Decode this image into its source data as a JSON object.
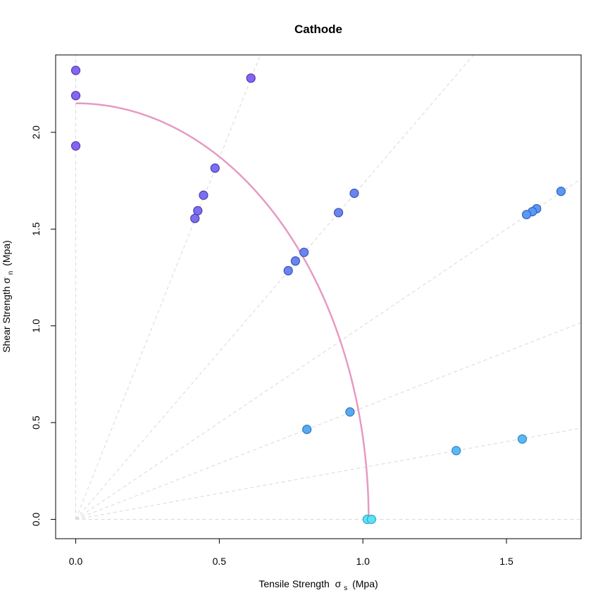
{
  "chart_data": {
    "type": "scatter",
    "title": "Cathode",
    "xlabel": "Tensile Strength",
    "xlabel_symbol": "σ",
    "xlabel_sub": "s",
    "xlabel_unit": "(Mpa)",
    "ylabel": "Shear Strength",
    "ylabel_symbol": "σ",
    "ylabel_sub": "n",
    "ylabel_unit": "(Mpa)",
    "xlim": [
      -0.07,
      1.76
    ],
    "ylim": [
      -0.1,
      2.4
    ],
    "x_ticks": [
      0.0,
      0.5,
      1.0,
      1.5
    ],
    "x_tick_labels": [
      "0.0",
      "0.5",
      "1.0",
      "1.5"
    ],
    "y_ticks": [
      0.0,
      0.5,
      1.0,
      1.5,
      2.0
    ],
    "y_tick_labels": [
      "0.0",
      "0.5",
      "1.0",
      "1.5",
      "2.0"
    ],
    "grid": false,
    "ray_angles_deg": [
      0,
      15,
      30,
      45,
      60,
      75,
      90
    ],
    "envelope": {
      "type": "elliptical",
      "a": 1.02,
      "b": 2.15,
      "color": "#e69ac4"
    },
    "points": [
      {
        "x": 0.0,
        "y": 2.32,
        "color": "#8466f0",
        "edge": "#5236b8"
      },
      {
        "x": 0.0,
        "y": 2.19,
        "color": "#8466f0",
        "edge": "#5236b8"
      },
      {
        "x": 0.0,
        "y": 1.93,
        "color": "#8466f0",
        "edge": "#5236b8"
      },
      {
        "x": 0.61,
        "y": 2.28,
        "color": "#8466f0",
        "edge": "#5236b8"
      },
      {
        "x": 0.485,
        "y": 1.815,
        "color": "#7b6ef0",
        "edge": "#4a3cb4"
      },
      {
        "x": 0.445,
        "y": 1.675,
        "color": "#7b6ef0",
        "edge": "#4a3cb4"
      },
      {
        "x": 0.425,
        "y": 1.595,
        "color": "#7b6ef0",
        "edge": "#4a3cb4"
      },
      {
        "x": 0.415,
        "y": 1.555,
        "color": "#7b6ef0",
        "edge": "#4a3cb4"
      },
      {
        "x": 0.795,
        "y": 1.38,
        "color": "#6a84f0",
        "edge": "#3a54b8"
      },
      {
        "x": 0.765,
        "y": 1.335,
        "color": "#6a84f0",
        "edge": "#3a54b8"
      },
      {
        "x": 0.74,
        "y": 1.285,
        "color": "#6a84f0",
        "edge": "#3a54b8"
      },
      {
        "x": 0.97,
        "y": 1.685,
        "color": "#6a84f0",
        "edge": "#3a54b8"
      },
      {
        "x": 0.915,
        "y": 1.585,
        "color": "#6a84f0",
        "edge": "#3a54b8"
      },
      {
        "x": 1.69,
        "y": 1.695,
        "color": "#5b98f2",
        "edge": "#2f64bc"
      },
      {
        "x": 1.605,
        "y": 1.605,
        "color": "#5b98f2",
        "edge": "#2f64bc"
      },
      {
        "x": 1.59,
        "y": 1.59,
        "color": "#5b98f2",
        "edge": "#2f64bc"
      },
      {
        "x": 1.57,
        "y": 1.575,
        "color": "#5b98f2",
        "edge": "#2f64bc"
      },
      {
        "x": 0.955,
        "y": 0.555,
        "color": "#5aa8f2",
        "edge": "#2e78bc"
      },
      {
        "x": 0.805,
        "y": 0.465,
        "color": "#5aa8f2",
        "edge": "#2e78bc"
      },
      {
        "x": 1.555,
        "y": 0.415,
        "color": "#5ab8f4",
        "edge": "#2e8abf"
      },
      {
        "x": 1.325,
        "y": 0.355,
        "color": "#5ab8f4",
        "edge": "#2e8abf"
      },
      {
        "x": 1.015,
        "y": 0.0,
        "color": "#5ee0f6",
        "edge": "#2eaac6"
      },
      {
        "x": 1.03,
        "y": 0.0,
        "color": "#5ee0f6",
        "edge": "#2eaac6"
      }
    ]
  }
}
